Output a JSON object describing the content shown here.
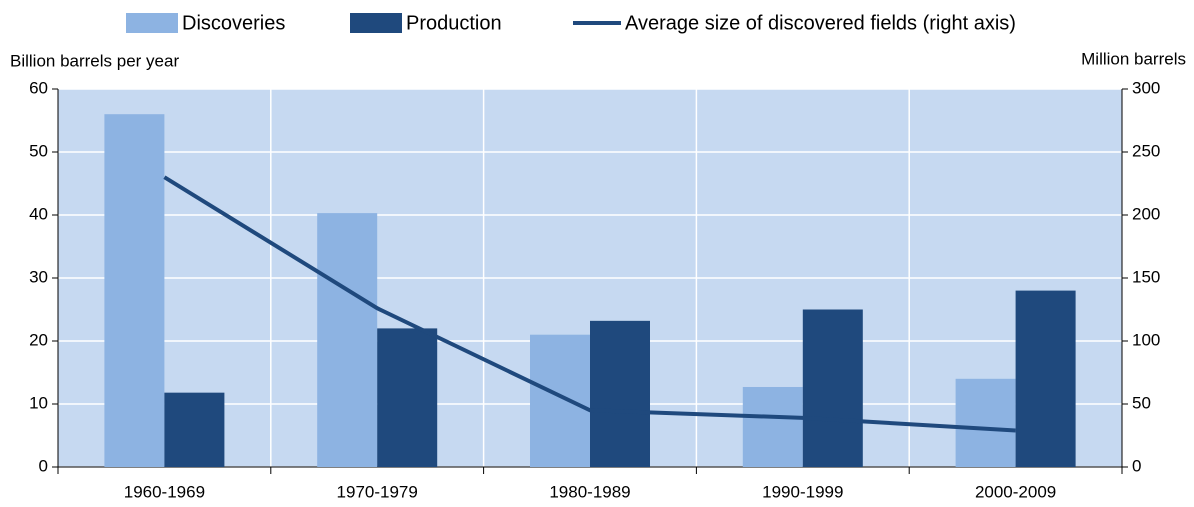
{
  "chart_data": {
    "type": "bar",
    "y_label": "Billion barrels per year",
    "y2_label": "Million barrels",
    "categories": [
      "1960-1969",
      "1970-1979",
      "1980-1989",
      "1990-1999",
      "2000-2009"
    ],
    "series": [
      {
        "name": "Discoveries",
        "color": "#8db3e2",
        "values": [
          56,
          40.3,
          21,
          12.7,
          14
        ]
      },
      {
        "name": "Production",
        "color": "#1f497d",
        "values": [
          11.8,
          22,
          23.2,
          25,
          28
        ]
      },
      {
        "name": "Average size of discovered fields (right axis)",
        "color": "#1f497d",
        "type": "line",
        "axis": "y2",
        "values": [
          230,
          126,
          45,
          39,
          29
        ]
      }
    ],
    "ylim": [
      0,
      60
    ],
    "yticks": [
      0,
      10,
      20,
      30,
      40,
      50,
      60
    ],
    "y2lim": [
      0,
      300
    ],
    "y2ticks": [
      0,
      50,
      100,
      150,
      200,
      250,
      300
    ],
    "grid": true,
    "legend": "top"
  }
}
